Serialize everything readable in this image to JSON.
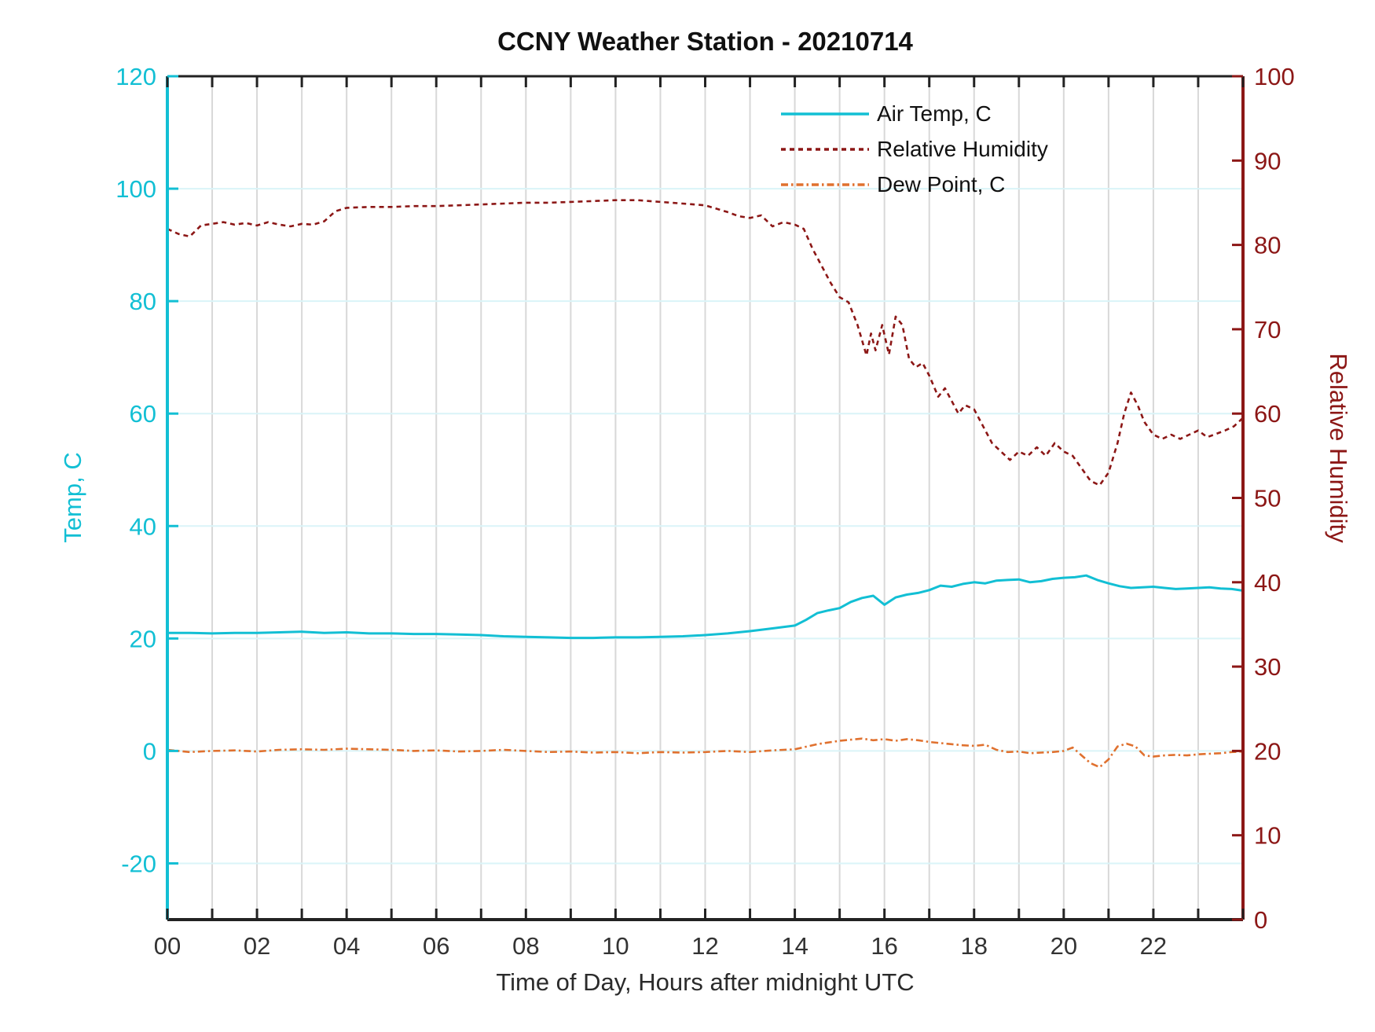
{
  "title": "CCNY Weather Station - 20210714",
  "colors": {
    "air_temp": "#12BFD4",
    "relative_humidity": "#8C1716",
    "dew_point": "#E0712F",
    "grid_vertical": "#D8D8D8",
    "grid_horizontal": "#DAF4F8",
    "frame": "#222222",
    "x_tick_text": "#333333"
  },
  "legend": {
    "items": [
      {
        "label": "Air Temp, C",
        "style": "solid",
        "color": "#12BFD4"
      },
      {
        "label": "Relative Humidity",
        "style": "dashed",
        "color": "#8C1716"
      },
      {
        "label": "Dew Point, C",
        "style": "dashdot",
        "color": "#E0712F"
      }
    ]
  },
  "chart_data": {
    "type": "line",
    "title": "CCNY Weather Station - 20210714",
    "xlabel": "Time of Day, Hours after midnight UTC",
    "x_axis": {
      "min": 0,
      "max": 24,
      "tick_every": 1,
      "grid_every": 1,
      "label_every": 2,
      "tick_labels": [
        "00",
        "02",
        "04",
        "06",
        "08",
        "10",
        "12",
        "14",
        "16",
        "18",
        "20",
        "22"
      ]
    },
    "y_left": {
      "label": "Temp, C",
      "min": -30,
      "max": 120,
      "tick_values": [
        -20,
        0,
        20,
        40,
        60,
        80,
        100,
        120
      ],
      "grid_values": [
        -20,
        0,
        20,
        40,
        60,
        80,
        100
      ],
      "color": "#12BFD4"
    },
    "y_right": {
      "label": "Relative Humidity",
      "min": 0,
      "max": 100,
      "tick_values": [
        0,
        10,
        20,
        30,
        40,
        50,
        60,
        70,
        80,
        90,
        100
      ],
      "color": "#8C1716"
    },
    "series": [
      {
        "name": "Air Temp, C",
        "axis": "left",
        "color": "#12BFD4",
        "style": "solid",
        "width": 3,
        "points": [
          [
            0,
            21.0
          ],
          [
            0.5,
            21.0
          ],
          [
            1,
            20.9
          ],
          [
            1.5,
            21.0
          ],
          [
            2,
            21.0
          ],
          [
            2.5,
            21.1
          ],
          [
            3,
            21.2
          ],
          [
            3.5,
            21.0
          ],
          [
            4,
            21.1
          ],
          [
            4.5,
            20.9
          ],
          [
            5,
            20.9
          ],
          [
            5.5,
            20.8
          ],
          [
            6,
            20.8
          ],
          [
            6.5,
            20.7
          ],
          [
            7,
            20.6
          ],
          [
            7.5,
            20.4
          ],
          [
            8,
            20.3
          ],
          [
            8.5,
            20.2
          ],
          [
            9,
            20.1
          ],
          [
            9.5,
            20.1
          ],
          [
            10,
            20.2
          ],
          [
            10.5,
            20.2
          ],
          [
            11,
            20.3
          ],
          [
            11.5,
            20.4
          ],
          [
            12,
            20.6
          ],
          [
            12.5,
            20.9
          ],
          [
            13,
            21.3
          ],
          [
            13.5,
            21.8
          ],
          [
            14,
            22.3
          ],
          [
            14.25,
            23.3
          ],
          [
            14.5,
            24.5
          ],
          [
            14.75,
            25.0
          ],
          [
            15,
            25.4
          ],
          [
            15.25,
            26.5
          ],
          [
            15.5,
            27.2
          ],
          [
            15.75,
            27.6
          ],
          [
            16,
            26.0
          ],
          [
            16.25,
            27.3
          ],
          [
            16.5,
            27.8
          ],
          [
            16.75,
            28.1
          ],
          [
            17,
            28.6
          ],
          [
            17.25,
            29.4
          ],
          [
            17.5,
            29.2
          ],
          [
            17.75,
            29.7
          ],
          [
            18,
            30.0
          ],
          [
            18.25,
            29.8
          ],
          [
            18.5,
            30.3
          ],
          [
            18.75,
            30.4
          ],
          [
            19,
            30.5
          ],
          [
            19.25,
            30.0
          ],
          [
            19.5,
            30.2
          ],
          [
            19.75,
            30.6
          ],
          [
            20,
            30.8
          ],
          [
            20.25,
            30.9
          ],
          [
            20.5,
            31.2
          ],
          [
            20.75,
            30.4
          ],
          [
            21,
            29.8
          ],
          [
            21.25,
            29.3
          ],
          [
            21.5,
            29.0
          ],
          [
            21.75,
            29.1
          ],
          [
            22,
            29.2
          ],
          [
            22.25,
            29.0
          ],
          [
            22.5,
            28.8
          ],
          [
            22.75,
            28.9
          ],
          [
            23,
            29.0
          ],
          [
            23.25,
            29.1
          ],
          [
            23.5,
            28.9
          ],
          [
            23.75,
            28.8
          ],
          [
            24,
            28.5
          ]
        ]
      },
      {
        "name": "Relative Humidity",
        "axis": "right",
        "color": "#8C1716",
        "style": "dashed",
        "width": 2.6,
        "points": [
          [
            0,
            81.9
          ],
          [
            0.25,
            81.3
          ],
          [
            0.5,
            81.0
          ],
          [
            0.75,
            82.3
          ],
          [
            1,
            82.5
          ],
          [
            1.25,
            82.7
          ],
          [
            1.5,
            82.4
          ],
          [
            1.75,
            82.6
          ],
          [
            2,
            82.3
          ],
          [
            2.25,
            82.7
          ],
          [
            2.5,
            82.4
          ],
          [
            2.75,
            82.2
          ],
          [
            3,
            82.5
          ],
          [
            3.25,
            82.4
          ],
          [
            3.5,
            82.8
          ],
          [
            3.75,
            84.0
          ],
          [
            4,
            84.4
          ],
          [
            4.5,
            84.5
          ],
          [
            5,
            84.5
          ],
          [
            5.5,
            84.6
          ],
          [
            6,
            84.6
          ],
          [
            6.5,
            84.7
          ],
          [
            7,
            84.8
          ],
          [
            7.5,
            84.9
          ],
          [
            8,
            85.0
          ],
          [
            8.5,
            85.0
          ],
          [
            9,
            85.1
          ],
          [
            9.5,
            85.2
          ],
          [
            10,
            85.3
          ],
          [
            10.5,
            85.3
          ],
          [
            11,
            85.1
          ],
          [
            11.5,
            84.9
          ],
          [
            12,
            84.7
          ],
          [
            12.25,
            84.3
          ],
          [
            12.5,
            83.9
          ],
          [
            12.75,
            83.4
          ],
          [
            13,
            83.2
          ],
          [
            13.25,
            83.5
          ],
          [
            13.5,
            82.2
          ],
          [
            13.75,
            82.7
          ],
          [
            14,
            82.4
          ],
          [
            14.2,
            81.9
          ],
          [
            14.4,
            79.5
          ],
          [
            14.6,
            77.5
          ],
          [
            14.8,
            75.5
          ],
          [
            15,
            73.8
          ],
          [
            15.2,
            73.2
          ],
          [
            15.4,
            70.5
          ],
          [
            15.6,
            66.9
          ],
          [
            15.7,
            69.5
          ],
          [
            15.8,
            67.5
          ],
          [
            15.95,
            70.5
          ],
          [
            16.1,
            67.0
          ],
          [
            16.25,
            71.5
          ],
          [
            16.4,
            70.5
          ],
          [
            16.55,
            66.5
          ],
          [
            16.7,
            65.5
          ],
          [
            16.85,
            66.0
          ],
          [
            17,
            64.5
          ],
          [
            17.2,
            62.0
          ],
          [
            17.35,
            63.0
          ],
          [
            17.5,
            61.5
          ],
          [
            17.65,
            60.0
          ],
          [
            17.8,
            61.0
          ],
          [
            18,
            60.5
          ],
          [
            18.2,
            58.5
          ],
          [
            18.4,
            56.5
          ],
          [
            18.6,
            55.5
          ],
          [
            18.8,
            54.5
          ],
          [
            19,
            55.5
          ],
          [
            19.2,
            55.0
          ],
          [
            19.4,
            56.0
          ],
          [
            19.6,
            55.0
          ],
          [
            19.8,
            56.5
          ],
          [
            20,
            55.5
          ],
          [
            20.2,
            55.0
          ],
          [
            20.4,
            53.5
          ],
          [
            20.6,
            52.0
          ],
          [
            20.8,
            51.5
          ],
          [
            21,
            53.0
          ],
          [
            21.2,
            56.5
          ],
          [
            21.35,
            60.0
          ],
          [
            21.5,
            62.5
          ],
          [
            21.65,
            61.0
          ],
          [
            21.8,
            59.0
          ],
          [
            22,
            57.5
          ],
          [
            22.2,
            57.0
          ],
          [
            22.4,
            57.5
          ],
          [
            22.6,
            57.0
          ],
          [
            22.8,
            57.5
          ],
          [
            23,
            58.0
          ],
          [
            23.2,
            57.2
          ],
          [
            23.4,
            57.6
          ],
          [
            23.6,
            58.0
          ],
          [
            23.8,
            58.5
          ],
          [
            24,
            59.5
          ]
        ]
      },
      {
        "name": "Dew Point, C",
        "axis": "left",
        "color": "#E0712F",
        "style": "dashdot",
        "width": 2.6,
        "points": [
          [
            0,
            0.2
          ],
          [
            0.5,
            -0.2
          ],
          [
            1,
            0.0
          ],
          [
            1.5,
            0.1
          ],
          [
            2,
            -0.1
          ],
          [
            2.5,
            0.2
          ],
          [
            3,
            0.3
          ],
          [
            3.5,
            0.2
          ],
          [
            4,
            0.4
          ],
          [
            4.5,
            0.3
          ],
          [
            5,
            0.2
          ],
          [
            5.5,
            0.0
          ],
          [
            6,
            0.1
          ],
          [
            6.5,
            -0.1
          ],
          [
            7,
            0.0
          ],
          [
            7.5,
            0.2
          ],
          [
            8,
            0.0
          ],
          [
            8.5,
            -0.2
          ],
          [
            9,
            -0.1
          ],
          [
            9.5,
            -0.3
          ],
          [
            10,
            -0.2
          ],
          [
            10.5,
            -0.4
          ],
          [
            11,
            -0.2
          ],
          [
            11.5,
            -0.3
          ],
          [
            12,
            -0.2
          ],
          [
            12.5,
            0.0
          ],
          [
            13,
            -0.2
          ],
          [
            13.5,
            0.1
          ],
          [
            14,
            0.3
          ],
          [
            14.5,
            1.2
          ],
          [
            15,
            1.8
          ],
          [
            15.25,
            2.0
          ],
          [
            15.5,
            2.2
          ],
          [
            15.75,
            1.9
          ],
          [
            16,
            2.1
          ],
          [
            16.25,
            1.8
          ],
          [
            16.5,
            2.1
          ],
          [
            16.75,
            1.9
          ],
          [
            17,
            1.6
          ],
          [
            17.25,
            1.4
          ],
          [
            17.5,
            1.2
          ],
          [
            17.75,
            1.0
          ],
          [
            18,
            0.9
          ],
          [
            18.25,
            1.1
          ],
          [
            18.5,
            0.2
          ],
          [
            18.75,
            -0.2
          ],
          [
            19,
            -0.1
          ],
          [
            19.25,
            -0.4
          ],
          [
            19.5,
            -0.3
          ],
          [
            19.75,
            -0.2
          ],
          [
            20,
            0.0
          ],
          [
            20.2,
            0.6
          ],
          [
            20.4,
            -0.8
          ],
          [
            20.6,
            -2.2
          ],
          [
            20.8,
            -2.9
          ],
          [
            21,
            -1.5
          ],
          [
            21.2,
            0.8
          ],
          [
            21.4,
            1.3
          ],
          [
            21.6,
            0.8
          ],
          [
            21.8,
            -0.8
          ],
          [
            22,
            -1.0
          ],
          [
            22.25,
            -0.8
          ],
          [
            22.5,
            -0.7
          ],
          [
            22.75,
            -0.8
          ],
          [
            23,
            -0.6
          ],
          [
            23.25,
            -0.5
          ],
          [
            23.5,
            -0.4
          ],
          [
            23.75,
            -0.2
          ],
          [
            24,
            -0.1
          ]
        ]
      }
    ],
    "legend_position": "upper-right-inside",
    "grid": true
  }
}
